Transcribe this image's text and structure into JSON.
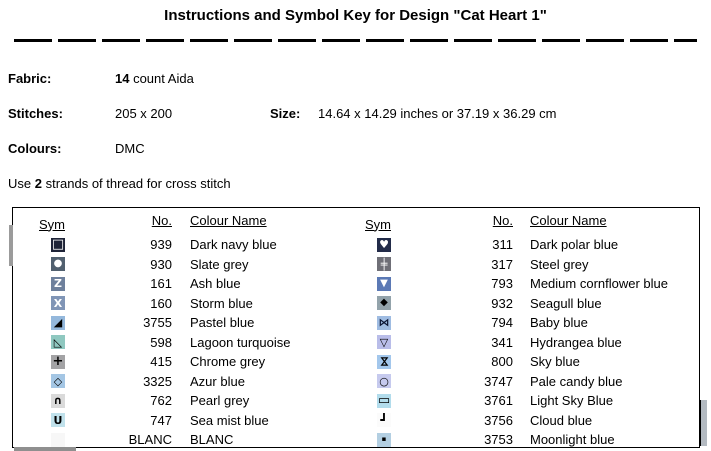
{
  "title": "Instructions and Symbol Key for Design \"Cat Heart 1\"",
  "info": {
    "fabric": {
      "label": "Fabric:",
      "value_bold": "14",
      "value_rest": " count Aida"
    },
    "stitches": {
      "label": "Stitches:",
      "value": "205 x 200"
    },
    "size": {
      "label": "Size:",
      "value": "14.64 x 14.29 inches or 37.19 x 36.29 cm"
    },
    "colours": {
      "label": "Colours:",
      "value": "DMC"
    },
    "strands": {
      "prefix": "Use ",
      "bold": "2",
      "suffix": " strands of thread for cross stitch"
    }
  },
  "key_table": {
    "headers": {
      "sym": "Sym",
      "no": "No.",
      "name": "Colour Name"
    },
    "left_rows": [
      {
        "symbol": "white-square-outline",
        "glyph": "□",
        "style": "background:#1e2337;color:#ffffff",
        "glyph_style": "font-size:13px;font-weight:bold",
        "no": "939",
        "name": "Dark navy blue"
      },
      {
        "symbol": "white-circle",
        "glyph": "●",
        "style": "background:#51606f;color:#ffffff",
        "glyph_style": "font-size:10px",
        "no": "930",
        "name": "Slate grey"
      },
      {
        "symbol": "letter-z",
        "glyph": "Z",
        "style": "background:#6e809c;color:#ffffff",
        "glyph_style": "font-size:11px;font-weight:bold",
        "no": "161",
        "name": "Ash blue"
      },
      {
        "symbol": "letter-x",
        "glyph": "X",
        "style": "background:#8095b6;color:#ffffff",
        "glyph_style": "font-size:11px;font-weight:bold",
        "no": "160",
        "name": "Storm blue"
      },
      {
        "symbol": "black-lower-right-triangle",
        "glyph": "◢",
        "style": "background:#94b8dc;color:#000000",
        "glyph_style": "font-size:11px",
        "no": "3755",
        "name": "Pastel blue"
      },
      {
        "symbol": "lower-left-triangle-outline",
        "glyph": "◺",
        "style": "background:#8fc8c0;color:#000000",
        "glyph_style": "font-size:11px",
        "no": "598",
        "name": "Lagoon turquoise"
      },
      {
        "symbol": "plus",
        "glyph": "+",
        "style": "background:#a3a3a5;color:#000000",
        "glyph_style": "font-size:13px;font-weight:bold",
        "no": "415",
        "name": "Chrome grey"
      },
      {
        "symbol": "diamond-outline",
        "glyph": "◇",
        "style": "background:#a4c6e4;color:#000000",
        "glyph_style": "font-size:11px",
        "no": "3325",
        "name": "Azur blue"
      },
      {
        "symbol": "intersection-arc",
        "glyph": "∩",
        "style": "background:#dadada;color:#000000",
        "glyph_style": "font-size:11px;font-weight:bold",
        "no": "762",
        "name": "Pearl grey"
      },
      {
        "symbol": "letter-u",
        "glyph": "U",
        "style": "background:#c0e1eb;color:#000000",
        "glyph_style": "font-size:11px;font-weight:bold",
        "no": "747",
        "name": "Sea mist blue"
      },
      {
        "symbol": "blank-swatch",
        "glyph": "",
        "style": "background:#f7f7f7;color:#000000",
        "glyph_style": "",
        "no": "BLANC",
        "name": "BLANC"
      }
    ],
    "right_rows": [
      {
        "symbol": "white-heart",
        "glyph": "♥",
        "style": "background:#222b49;color:#ffffff",
        "glyph_style": "font-size:11px",
        "no": "311",
        "name": "Dark polar blue"
      },
      {
        "symbol": "double-cross-hash",
        "glyph": "╪",
        "style": "background:#6f6f77;color:#ffffff",
        "glyph_style": "font-size:11px",
        "no": "317",
        "name": "Steel grey"
      },
      {
        "symbol": "white-down-triangle",
        "glyph": "▼",
        "style": "background:#5b79b5;color:#ffffff",
        "glyph_style": "font-size:10px",
        "no": "793",
        "name": "Medium cornflower blue"
      },
      {
        "symbol": "black-diamond",
        "glyph": "◆",
        "style": "background:#93a3ab;color:#000000",
        "glyph_style": "font-size:10px",
        "no": "932",
        "name": "Seagull blue"
      },
      {
        "symbol": "bowtie",
        "glyph": "⋈",
        "style": "background:#9fbce2;color:#0b1533",
        "glyph_style": "font-size:11px;font-weight:bold",
        "no": "794",
        "name": "Baby blue"
      },
      {
        "symbol": "down-triangle-outline",
        "glyph": "▽",
        "style": "background:#b9bde9;color:#000000",
        "glyph_style": "font-size:11px",
        "no": "341",
        "name": "Hydrangea blue"
      },
      {
        "symbol": "hourglass",
        "glyph": "⋈",
        "style": "background:#a3c7ec;color:#000000",
        "glyph_style": "font-size:11px;font-weight:bold;transform:rotate(90deg)",
        "no": "800",
        "name": "Sky blue"
      },
      {
        "symbol": "circle-outline",
        "glyph": "○",
        "style": "background:#c6caee;color:#000000",
        "glyph_style": "font-size:11px",
        "no": "3747",
        "name": "Pale candy blue"
      },
      {
        "symbol": "rectangle-outline",
        "glyph": "▭",
        "style": "background:#b2dcec;color:#000000",
        "glyph_style": "font-size:13px",
        "no": "3761",
        "name": "Light Sky Blue"
      },
      {
        "symbol": "corner-bracket",
        "glyph": "┛",
        "style": "background:#fbfbfb;color:#000000",
        "glyph_style": "font-size:12px",
        "no": "3756",
        "name": "Cloud blue"
      },
      {
        "symbol": "small-dot",
        "glyph": "▪",
        "style": "background:#b3cfe2;color:#000000",
        "glyph_style": "font-size:7px",
        "no": "3753",
        "name": "Moonlight blue"
      }
    ]
  }
}
